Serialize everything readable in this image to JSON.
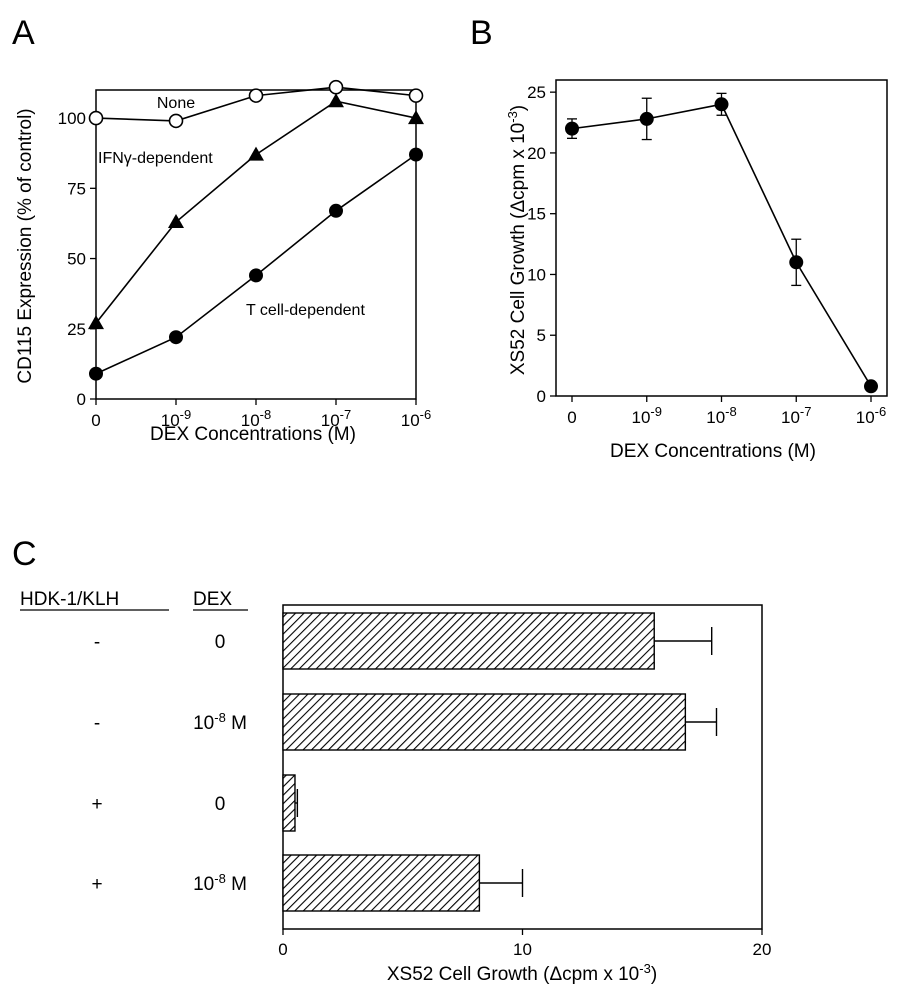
{
  "panels": {
    "A": {
      "letter": "A"
    },
    "B": {
      "letter": "B"
    },
    "C": {
      "letter": "C"
    }
  },
  "chart_data": [
    {
      "panel": "A",
      "type": "line",
      "xlabel": "DEX Concentrations (M)",
      "ylabel": "CD115 Expression (% of control)",
      "categories": [
        {
          "base": "0",
          "exp": ""
        },
        {
          "base": "10",
          "exp": "-9"
        },
        {
          "base": "10",
          "exp": "-8"
        },
        {
          "base": "10",
          "exp": "-7"
        },
        {
          "base": "10",
          "exp": "-6"
        }
      ],
      "ylim": [
        0,
        110
      ],
      "yticks": [
        0,
        25,
        50,
        75,
        100
      ],
      "grid": false,
      "series": [
        {
          "name": "None",
          "marker": "open-circle",
          "values": [
            100,
            99,
            108,
            111,
            108
          ]
        },
        {
          "name": "IFNγ-dependent",
          "marker": "filled-triangle",
          "values": [
            27,
            63,
            87,
            106,
            100
          ]
        },
        {
          "name": "T cell-dependent",
          "marker": "filled-circle",
          "values": [
            9,
            22,
            44,
            67,
            87
          ]
        }
      ]
    },
    {
      "panel": "B",
      "type": "line",
      "xlabel": "DEX Concentrations (M)",
      "ylabel": "XS52 Cell Growth (Δcpm x 10",
      "ylabel_exp": "-3",
      "ylabel_end": ")",
      "categories": [
        {
          "base": "0",
          "exp": ""
        },
        {
          "base": "10",
          "exp": "-9"
        },
        {
          "base": "10",
          "exp": "-8"
        },
        {
          "base": "10",
          "exp": "-7"
        },
        {
          "base": "10",
          "exp": "-6"
        }
      ],
      "ylim": [
        0,
        26
      ],
      "yticks": [
        0,
        5,
        10,
        15,
        20,
        25
      ],
      "grid": false,
      "series": [
        {
          "marker": "filled-circle",
          "values": [
            22,
            22.8,
            24,
            11,
            0.8
          ],
          "errors": [
            0.8,
            1.7,
            0.9,
            1.9,
            0.2
          ]
        }
      ]
    },
    {
      "panel": "C",
      "type": "bar",
      "orientation": "horizontal",
      "xlabel": "XS52 Cell Growth (Δcpm x 10",
      "xlabel_exp": "-3",
      "xlabel_end": ")",
      "xlim": [
        0,
        20
      ],
      "xticks": [
        0,
        10,
        20
      ],
      "headers": {
        "hdk": "HDK-1/KLH",
        "dex": "DEX"
      },
      "rows": [
        {
          "hdk": "-",
          "dex": "0",
          "dex_exp": "",
          "dex_unit": "",
          "value": 15.5,
          "error": 2.4
        },
        {
          "hdk": "-",
          "dex": "10",
          "dex_exp": "-8",
          "dex_unit": " M",
          "value": 16.8,
          "error": 1.3
        },
        {
          "hdk": "+",
          "dex": "0",
          "dex_exp": "",
          "dex_unit": "",
          "value": 0.5,
          "error": 0.1
        },
        {
          "hdk": "+",
          "dex": "10",
          "dex_exp": "-8",
          "dex_unit": " M",
          "value": 8.2,
          "error": 1.8
        }
      ]
    }
  ]
}
